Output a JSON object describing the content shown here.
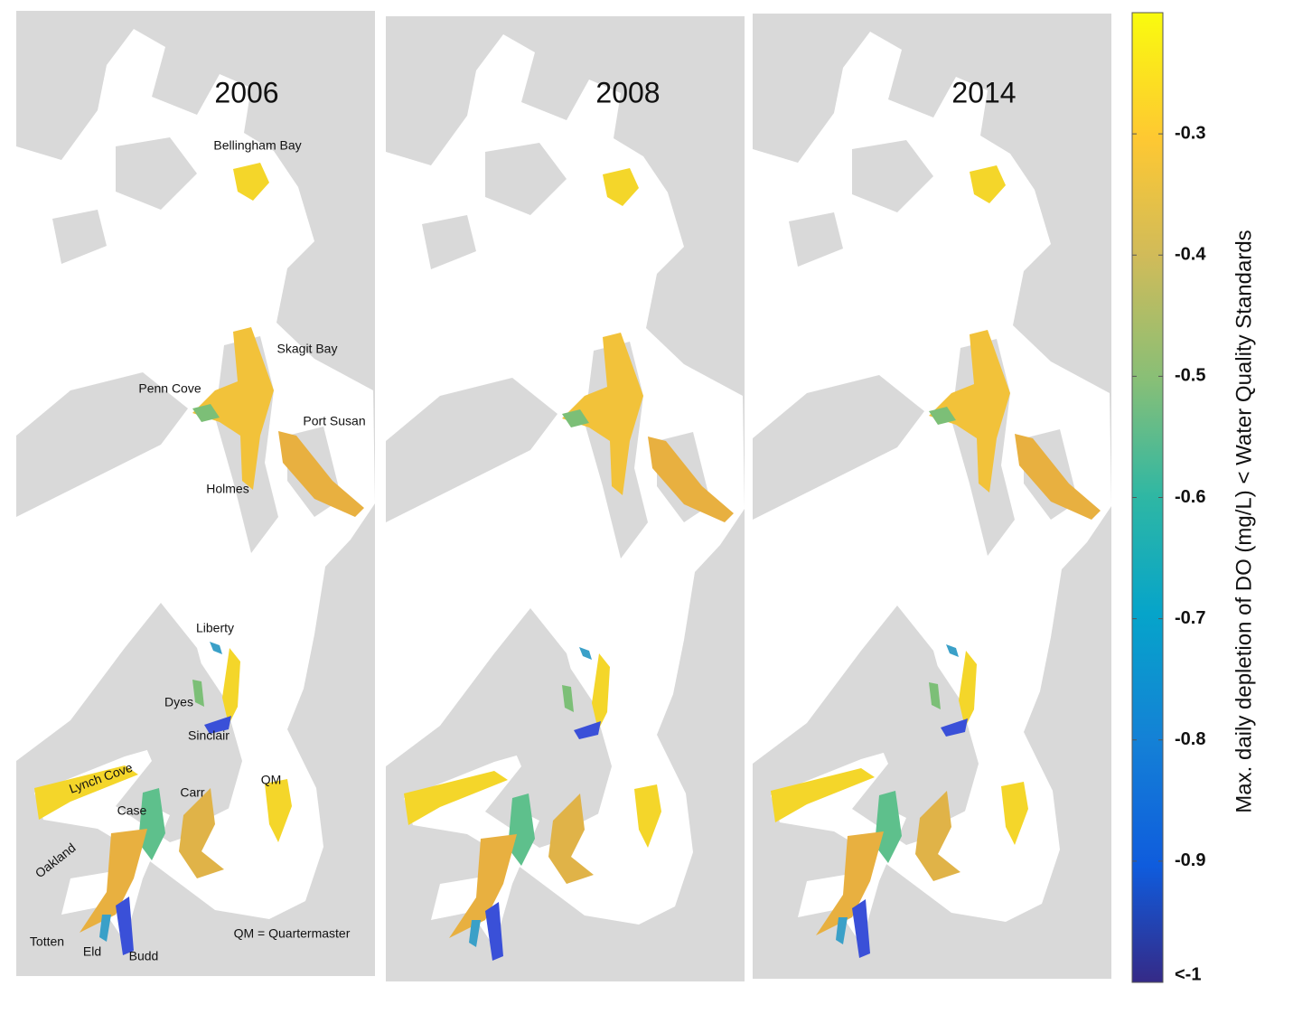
{
  "panels": [
    {
      "title": "2006"
    },
    {
      "title": "2008"
    },
    {
      "title": "2014"
    }
  ],
  "labels": [
    "Bellingham Bay",
    "Skagit Bay",
    "Penn Cove",
    "Port Susan",
    "Holmes",
    "Liberty",
    "Dyes",
    "Sinclair",
    "Lynch Cove",
    "Case",
    "Carr",
    "QM",
    "Oakland",
    "Totten",
    "Eld",
    "Budd"
  ],
  "note": "QM = Quartermaster",
  "colorbar": {
    "label": "Max. daily depletion of DO (mg/L) < Water Quality Standards",
    "lim": [
      -1,
      -0.2
    ],
    "ticks": [
      -0.3,
      -0.4,
      -0.5,
      -0.6,
      -0.7,
      -0.8,
      -0.9,
      {
        "value": -1,
        "label": "<-1"
      }
    ]
  }
}
